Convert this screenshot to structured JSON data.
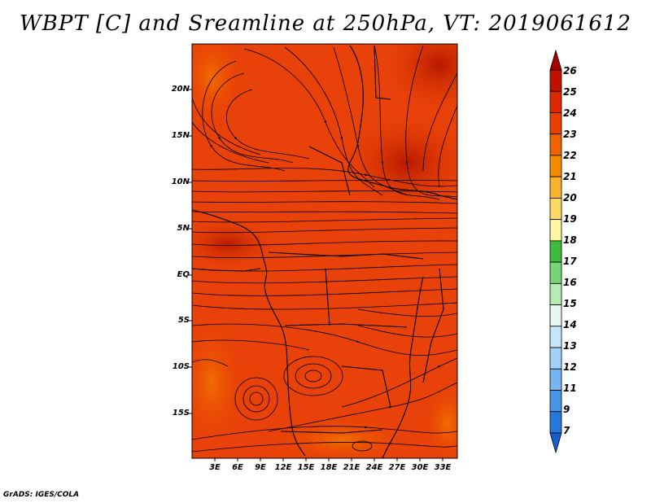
{
  "title": "WBPT [C] and Sreamline at 250hPa, VT: 2019061612",
  "footer": "GrADS: IGES/COLA",
  "lat_labels": [
    "20N",
    "15N",
    "10N",
    "5N",
    "EQ",
    "5S",
    "10S",
    "15S"
  ],
  "lon_labels": [
    "3E",
    "6E",
    "9E",
    "12E",
    "15E",
    "18E",
    "21E",
    "24E",
    "27E",
    "30E",
    "33E"
  ],
  "colorbar": {
    "labels": [
      "26",
      "25",
      "24",
      "23",
      "22",
      "21",
      "20",
      "19",
      "18",
      "17",
      "16",
      "15",
      "14",
      "13",
      "12",
      "11",
      "9",
      "7"
    ],
    "colors": [
      "#a50000",
      "#c01000",
      "#dc2800",
      "#e84000",
      "#f06400",
      "#f58c00",
      "#fab42c",
      "#fcd864",
      "#fef6a4",
      "#3cbc3c",
      "#78d478",
      "#b4ecb4",
      "#e6f8f0",
      "#c8e6fa",
      "#a0d2fa",
      "#78b4f0",
      "#4a96e6",
      "#2878dc",
      "#1460cc"
    ]
  },
  "map": {
    "background_color": "#e63c00",
    "lat_range": [
      "19S",
      "24N"
    ],
    "lon_range": [
      "0E",
      "35E"
    ]
  }
}
